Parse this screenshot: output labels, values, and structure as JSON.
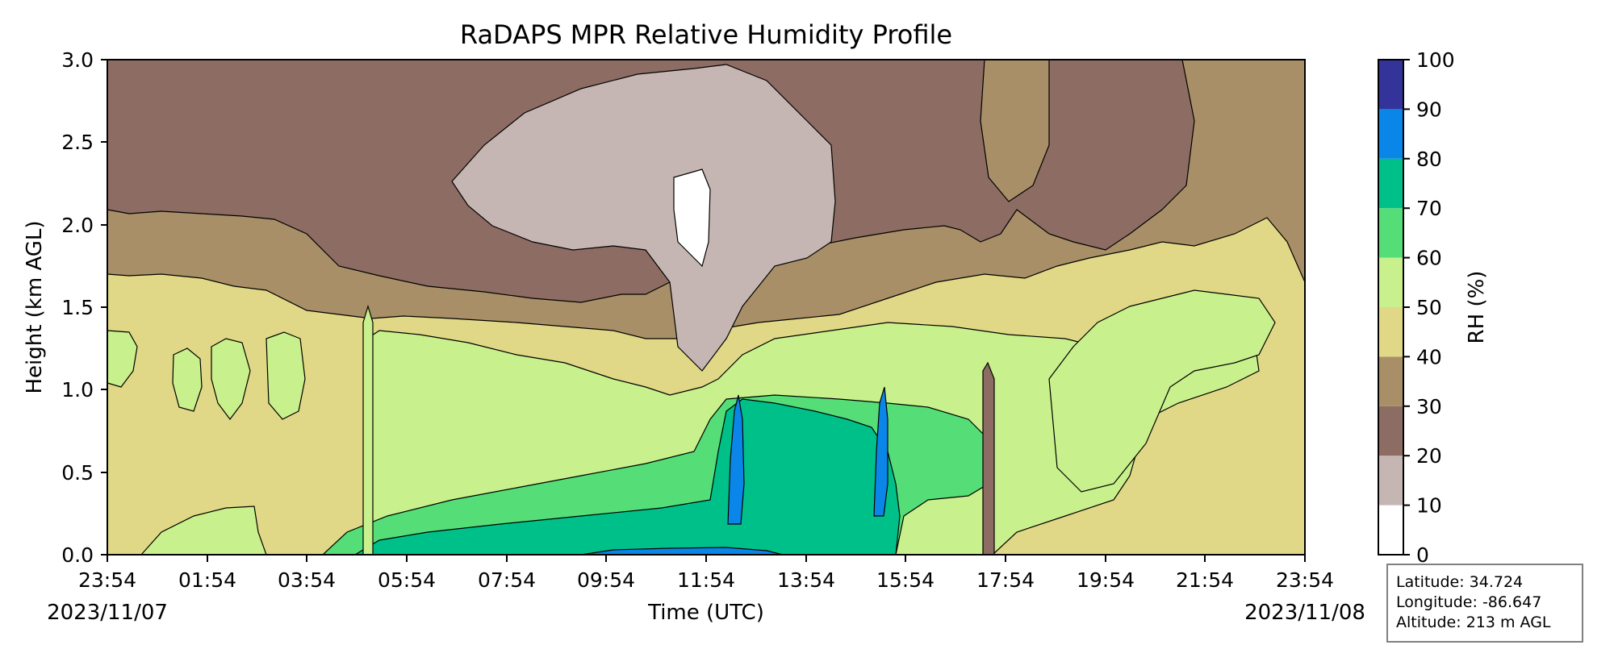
{
  "chart_data": {
    "type": "heatmap",
    "title": "RaDAPS MPR Relative Humidity Profile",
    "xlabel": "Time (UTC)",
    "ylabel": "Height (km AGL)",
    "xlim": [
      "2023-11-07 23:54",
      "2023-11-08 23:54"
    ],
    "ylim": [
      0.0,
      3.0
    ],
    "x_tick_labels": [
      "23:54",
      "01:54",
      "03:54",
      "05:54",
      "07:54",
      "09:54",
      "11:54",
      "13:54",
      "15:54",
      "17:54",
      "19:54",
      "21:54",
      "23:54"
    ],
    "y_tick_labels": [
      "0.0",
      "0.5",
      "1.0",
      "1.5",
      "2.0",
      "2.5",
      "3.0"
    ],
    "start_date_label": "2023/11/07",
    "end_date_label": "2023/11/08",
    "colorbar": {
      "label": "RH (%)",
      "levels": [
        0,
        10,
        20,
        30,
        40,
        50,
        60,
        70,
        80,
        90,
        100
      ],
      "tick_labels": [
        "0",
        "10",
        "20",
        "30",
        "40",
        "50",
        "60",
        "70",
        "80",
        "90",
        "100"
      ],
      "colors": [
        "#ffffff",
        "#c5b6b3",
        "#8c6c63",
        "#a88f67",
        "#e0d886",
        "#c8f08c",
        "#55dd77",
        "#00c08a",
        "#0a86e8",
        "#333399"
      ]
    },
    "contour_regions": [
      {
        "x_start": "23:54",
        "x_end": "04:30",
        "height_ranges": [
          [
            "0.0-0.3 km",
            "~45%"
          ],
          [
            "0.3-1.6 km",
            "40-50% with 50-60% pockets near 1.0-1.3 km"
          ],
          [
            "1.6-2.1 km",
            "30-40%"
          ],
          [
            "2.1-3.0 km",
            "20-30%"
          ]
        ]
      },
      {
        "x_start": "04:30",
        "x_end": "10:30",
        "height_ranges": [
          [
            "0.0-0.1 km",
            "70-80%"
          ],
          [
            "0.1-0.3 km",
            "60-70%"
          ],
          [
            "0.3-0.6 km",
            "50-60%"
          ],
          [
            "0.6-1.4 km",
            "40-50%"
          ],
          [
            "1.4-1.8 km",
            "30-40%"
          ],
          [
            "1.8-3.0 km",
            "20-30% with 10-20% core near 2.2-2.8 km"
          ]
        ]
      },
      {
        "x_start": "10:30",
        "x_end": "11:30",
        "height_ranges": [
          [
            "1.7-2.3 km",
            "0-10%"
          ]
        ]
      },
      {
        "x_start": "11:30",
        "x_end": "16:00",
        "height_ranges": [
          [
            "0.0-0.8 km",
            "70-90%"
          ],
          [
            "0.8-1.3 km",
            "50-60%"
          ],
          [
            "1.3-2.0 km",
            "40-50%"
          ],
          [
            "2.0-3.0 km",
            "20-40%"
          ]
        ]
      },
      {
        "x_start": "16:00",
        "x_end": "19:00",
        "height_ranges": [
          [
            "0.0-0.6 km",
            "50-70%"
          ],
          [
            "0.6-1.7 km",
            "40-50%"
          ],
          [
            "1.7-3.0 km",
            "20-40%"
          ]
        ]
      },
      {
        "x_start": "19:00",
        "x_end": "23:54",
        "height_ranges": [
          [
            "0.0-0.5 km",
            "40-50%"
          ],
          [
            "0.5-1.3 km",
            "50-60%"
          ],
          [
            "1.3-2.2 km",
            "40-50%"
          ],
          [
            "2.2-3.0 km",
            "30-50%"
          ]
        ]
      }
    ]
  },
  "site_info": {
    "latitude": "Latitude: 34.724",
    "longitude": "Longitude: -86.647",
    "altitude": "Altitude: 213 m AGL"
  }
}
